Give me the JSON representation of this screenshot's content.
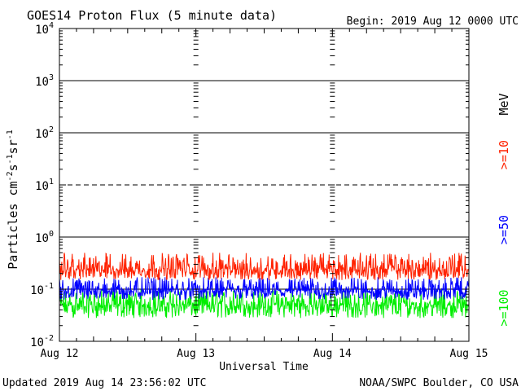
{
  "chart_data": {
    "type": "line",
    "title": "GOES14 Proton Flux (5 minute data)",
    "begin_label": "Begin: 2019 Aug 12 0000 UTC",
    "xlabel": "Universal Time",
    "ylabel_prefix": "Particles cm",
    "ylabel": "Particles cm-2 s-1 sr-1",
    "x_ticks": [
      "Aug 12",
      "Aug 13",
      "Aug 14",
      "Aug 15"
    ],
    "x_range_days": [
      0,
      3
    ],
    "y_scale": "log",
    "ylim": [
      0.01,
      10000
    ],
    "y_ticks": [
      {
        "base": "10",
        "exp": "-2",
        "value": 0.01
      },
      {
        "base": "10",
        "exp": "-1",
        "value": 0.1
      },
      {
        "base": "10",
        "exp": "0",
        "value": 1
      },
      {
        "base": "10",
        "exp": "1",
        "value": 10
      },
      {
        "base": "10",
        "exp": "2",
        "value": 100
      },
      {
        "base": "10",
        "exp": "3",
        "value": 1000
      },
      {
        "base": "10",
        "exp": "4",
        "value": 10000
      }
    ],
    "unit_label": "MeV",
    "series": [
      {
        "name": ">=10",
        "color": "#ff2200",
        "center": 0.24,
        "jitter_low": 0.15,
        "jitter_high": 0.5
      },
      {
        "name": ">=50",
        "color": "#0000ff",
        "center": 0.095,
        "jitter_low": 0.062,
        "jitter_high": 0.17
      },
      {
        "name": ">=100",
        "color": "#00ee00",
        "center": 0.05,
        "jitter_low": 0.028,
        "jitter_high": 0.1
      }
    ],
    "threshold_lines": [
      {
        "value": 10,
        "style": "dashed"
      },
      {
        "value": 1000,
        "style": "solid"
      },
      {
        "value": 100,
        "style": "solid"
      },
      {
        "value": 1,
        "style": "solid"
      },
      {
        "value": 0.1,
        "style": "solid"
      }
    ]
  },
  "footer": {
    "updated": "Updated 2019 Aug 14 23:56:02 UTC",
    "credit": "NOAA/SWPC Boulder, CO USA"
  }
}
